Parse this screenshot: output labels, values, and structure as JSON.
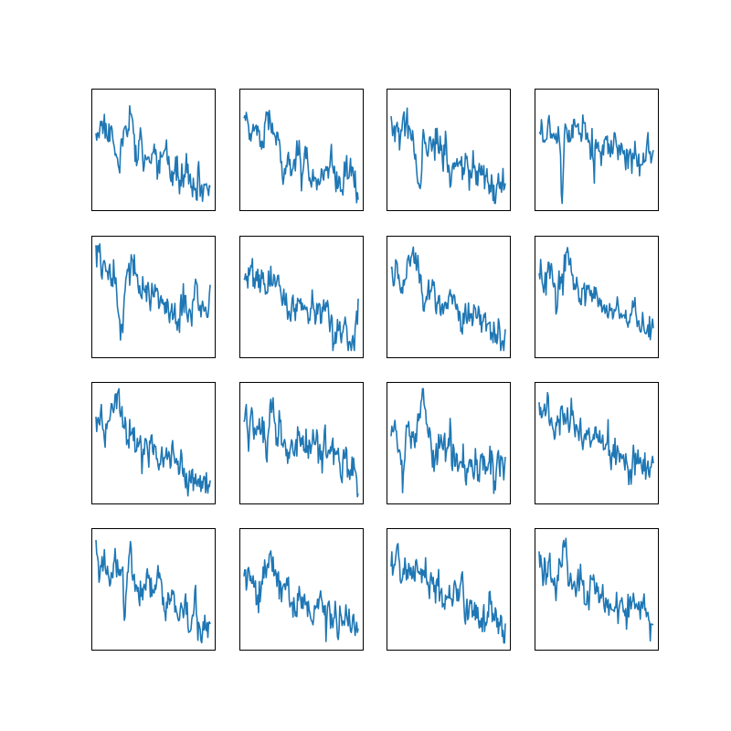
{
  "chart_data": {
    "type": "line",
    "layout": {
      "rows": 4,
      "cols": 4
    },
    "x_ticks": false,
    "y_ticks": false,
    "grid": false,
    "legend": "none",
    "line_color": "#1f77b4",
    "frame_color": "#000000",
    "background": "#ffffff",
    "points_per_panel": 150,
    "ylim": [
      0,
      1
    ],
    "panels": [
      {
        "id": "p1",
        "seed": 11,
        "start": 0.74,
        "end": 0.1,
        "noise": 0.1,
        "events": [
          {
            "at": 0.3,
            "h": 0.22,
            "w": 0.04
          },
          {
            "at": 0.2,
            "h": -0.18,
            "w": 0.02
          }
        ]
      },
      {
        "id": "p2",
        "seed": 23,
        "start": 0.66,
        "end": 0.16,
        "noise": 0.11,
        "events": [
          {
            "at": 0.22,
            "h": 0.24,
            "w": 0.04
          },
          {
            "at": 0.35,
            "h": -0.2,
            "w": 0.02
          }
        ]
      },
      {
        "id": "p3",
        "seed": 37,
        "start": 0.72,
        "end": 0.16,
        "noise": 0.12,
        "events": [
          {
            "at": 0.05,
            "h": 0.18,
            "w": 0.02
          },
          {
            "at": 0.26,
            "h": -0.3,
            "w": 0.02
          },
          {
            "at": 0.4,
            "h": 0.18,
            "w": 0.04
          }
        ]
      },
      {
        "id": "p4",
        "seed": 41,
        "start": 0.72,
        "end": 0.4,
        "noise": 0.1,
        "events": [
          {
            "at": 0.2,
            "h": -0.55,
            "w": 0.015
          },
          {
            "at": 0.32,
            "h": 0.18,
            "w": 0.04
          }
        ]
      },
      {
        "id": "p5",
        "seed": 53,
        "start": 0.72,
        "end": 0.3,
        "noise": 0.11,
        "events": [
          {
            "at": 0.02,
            "h": 0.22,
            "w": 0.02
          },
          {
            "at": 0.22,
            "h": -0.38,
            "w": 0.03
          },
          {
            "at": 0.3,
            "h": 0.2,
            "w": 0.04
          },
          {
            "at": 0.88,
            "h": 0.24,
            "w": 0.03
          }
        ]
      },
      {
        "id": "p6",
        "seed": 67,
        "start": 0.7,
        "end": 0.16,
        "noise": 0.11,
        "events": [
          {
            "at": 0.25,
            "h": 0.2,
            "w": 0.04
          },
          {
            "at": 0.18,
            "h": -0.18,
            "w": 0.02
          }
        ]
      },
      {
        "id": "p7",
        "seed": 71,
        "start": 0.74,
        "end": 0.16,
        "noise": 0.11,
        "events": [
          {
            "at": 0.2,
            "h": 0.26,
            "w": 0.04
          },
          {
            "at": 0.08,
            "h": -0.16,
            "w": 0.02
          }
        ]
      },
      {
        "id": "p8",
        "seed": 83,
        "start": 0.74,
        "end": 0.2,
        "noise": 0.1,
        "events": [
          {
            "at": 0.25,
            "h": 0.24,
            "w": 0.04
          },
          {
            "at": 0.15,
            "h": -0.24,
            "w": 0.02
          }
        ]
      },
      {
        "id": "p9",
        "seed": 97,
        "start": 0.74,
        "end": 0.1,
        "noise": 0.1,
        "events": [
          {
            "at": 0.2,
            "h": 0.26,
            "w": 0.06
          },
          {
            "at": 0.08,
            "h": -0.14,
            "w": 0.02
          }
        ]
      },
      {
        "id": "p10",
        "seed": 101,
        "start": 0.7,
        "end": 0.3,
        "noise": 0.11,
        "events": [
          {
            "at": 0.25,
            "h": 0.22,
            "w": 0.04
          },
          {
            "at": 0.2,
            "h": -0.24,
            "w": 0.02
          }
        ]
      },
      {
        "id": "p11",
        "seed": 113,
        "start": 0.6,
        "end": 0.26,
        "noise": 0.12,
        "events": [
          {
            "at": 0.28,
            "h": 0.34,
            "w": 0.05
          },
          {
            "at": 0.1,
            "h": -0.22,
            "w": 0.02
          },
          {
            "at": 0.65,
            "h": -0.2,
            "w": 0.02
          },
          {
            "at": 0.95,
            "h": 0.14,
            "w": 0.02
          }
        ]
      },
      {
        "id": "p12",
        "seed": 127,
        "start": 0.76,
        "end": 0.3,
        "noise": 0.12,
        "events": [
          {
            "at": 0.05,
            "h": 0.14,
            "w": 0.02
          },
          {
            "at": 0.2,
            "h": 0.12,
            "w": 0.03
          }
        ]
      },
      {
        "id": "p13",
        "seed": 131,
        "start": 0.74,
        "end": 0.2,
        "noise": 0.11,
        "events": [
          {
            "at": 0.3,
            "h": 0.26,
            "w": 0.03
          },
          {
            "at": 0.25,
            "h": -0.38,
            "w": 0.015
          }
        ]
      },
      {
        "id": "p14",
        "seed": 139,
        "start": 0.62,
        "end": 0.18,
        "noise": 0.11,
        "events": [
          {
            "at": 0.25,
            "h": 0.32,
            "w": 0.05
          },
          {
            "at": 0.1,
            "h": -0.12,
            "w": 0.02
          }
        ]
      },
      {
        "id": "p15",
        "seed": 149,
        "start": 0.76,
        "end": 0.16,
        "noise": 0.11,
        "events": [
          {
            "at": 0.25,
            "h": 0.18,
            "w": 0.04
          },
          {
            "at": 0.05,
            "h": 0.12,
            "w": 0.02
          }
        ]
      },
      {
        "id": "p16",
        "seed": 157,
        "start": 0.72,
        "end": 0.2,
        "noise": 0.11,
        "events": [
          {
            "at": 0.22,
            "h": 0.3,
            "w": 0.03
          },
          {
            "at": 0.15,
            "h": -0.14,
            "w": 0.02
          }
        ]
      }
    ]
  }
}
